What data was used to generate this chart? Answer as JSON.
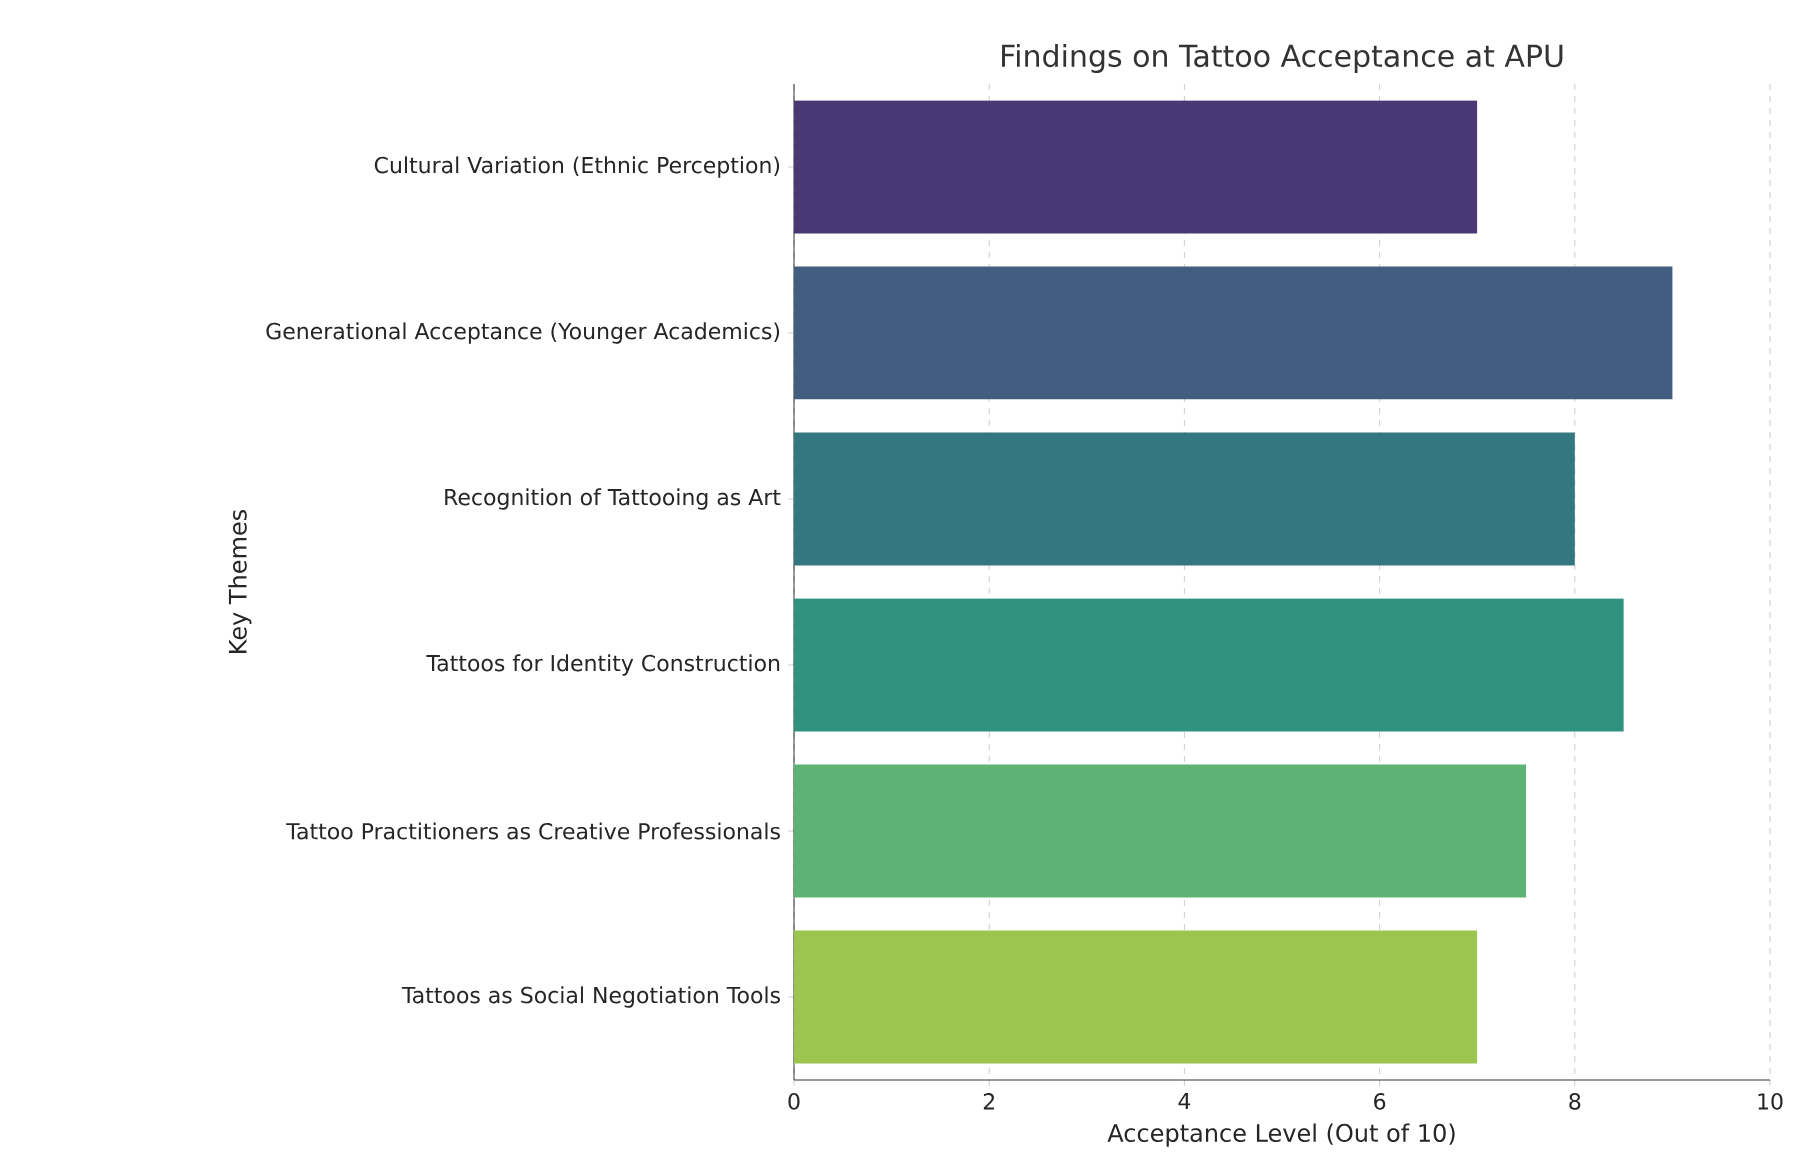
{
  "chart_data": {
    "type": "bar",
    "orientation": "horizontal",
    "title": "Findings on Tattoo Acceptance at APU",
    "xlabel": "Acceptance Level (Out of 10)",
    "ylabel": "Key Themes",
    "categories": [
      "Cultural Variation (Ethnic Perception)",
      "Generational Acceptance (Younger Academics)",
      "Recognition of Tattooing as Art",
      "Tattoos for Identity Construction",
      "Tattoo Practitioners as Creative Professionals",
      "Tattoos as Social Negotiation Tools"
    ],
    "values": [
      7,
      9,
      8,
      8.5,
      7.5,
      7
    ],
    "colors": [
      "#4a3875",
      "#415d80",
      "#347780",
      "#2f917e",
      "#5db374",
      "#9bc54e"
    ],
    "xlim": [
      0,
      10
    ],
    "xticks": [
      0,
      2,
      4,
      6,
      8,
      10
    ],
    "grid": "x"
  }
}
